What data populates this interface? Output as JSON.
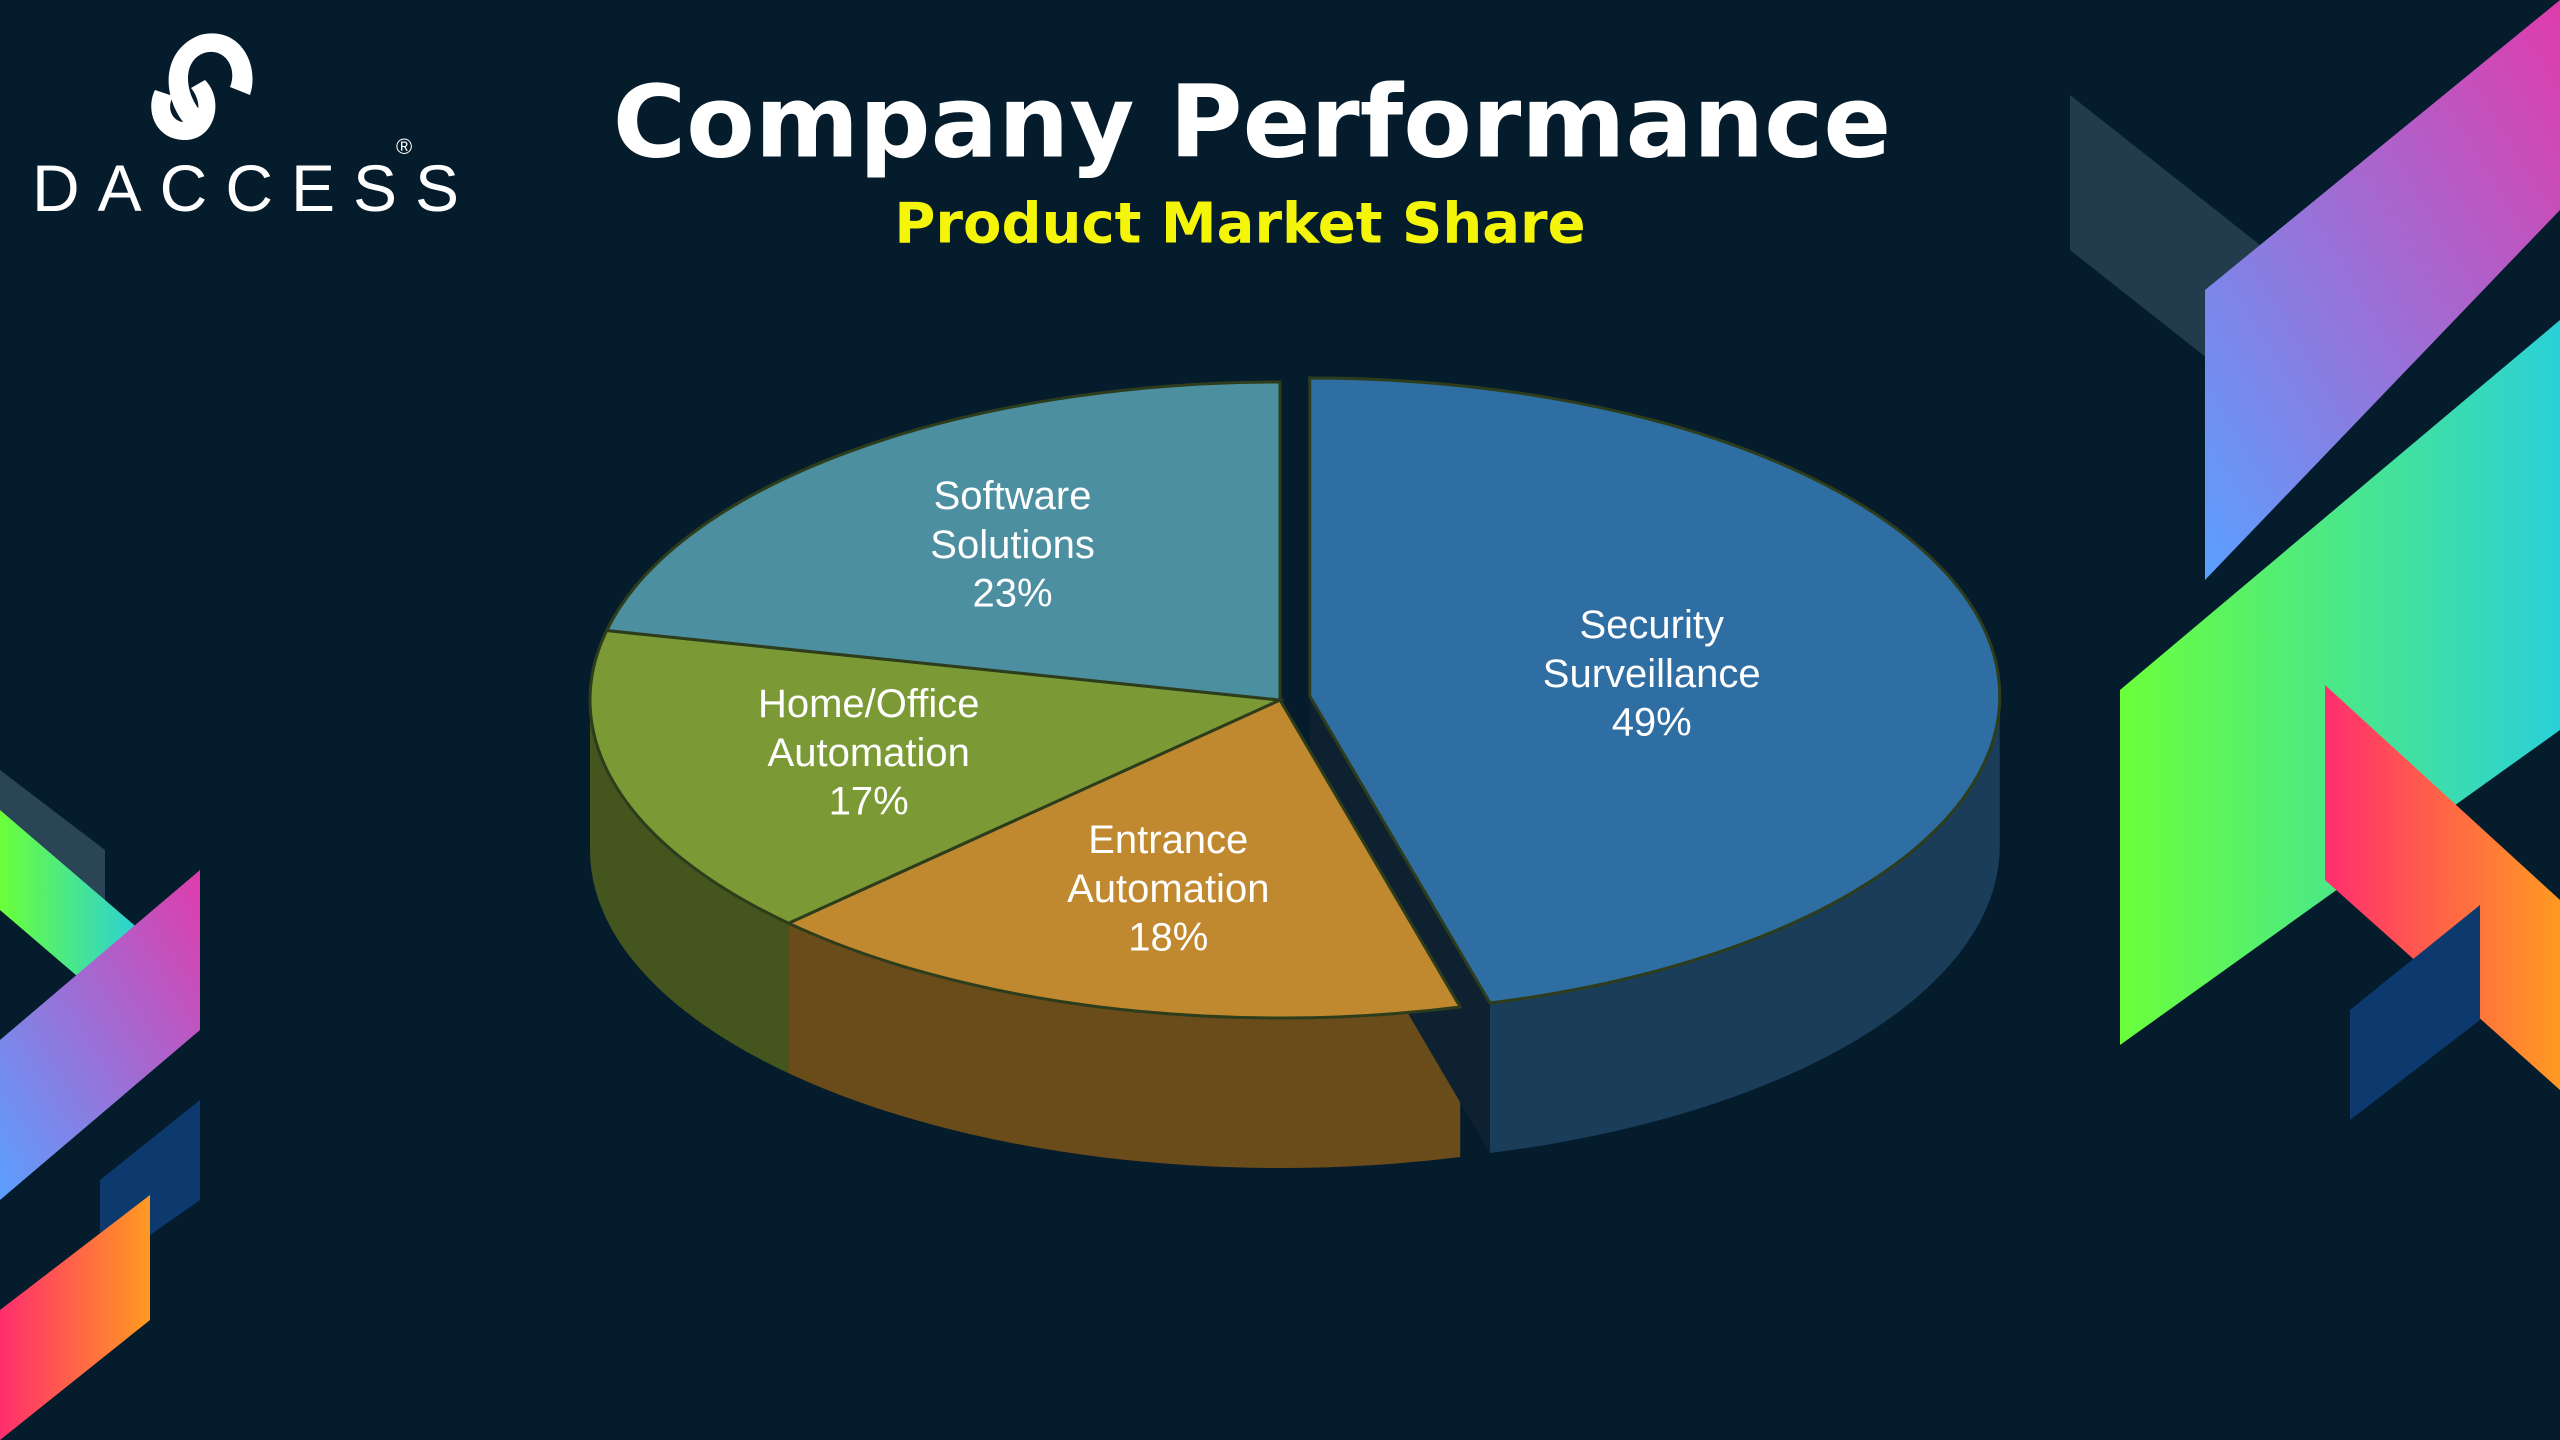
{
  "logo": {
    "text": "DACCESS",
    "mark": "®"
  },
  "chart_data": {
    "type": "pie",
    "title": "Company Performance",
    "subtitle": "Product Market Share",
    "categories": [
      "Security Surveillance",
      "Entrance Automation",
      "Home/Office Automation",
      "Software Solutions"
    ],
    "values": [
      49,
      18,
      17,
      23
    ],
    "value_labels": [
      "49%",
      "18%",
      "17%",
      "23%"
    ],
    "colors": [
      "#2f6ea3",
      "#c1892f",
      "#7b9a36",
      "#4c8fa0"
    ],
    "exploded": [
      0
    ]
  }
}
